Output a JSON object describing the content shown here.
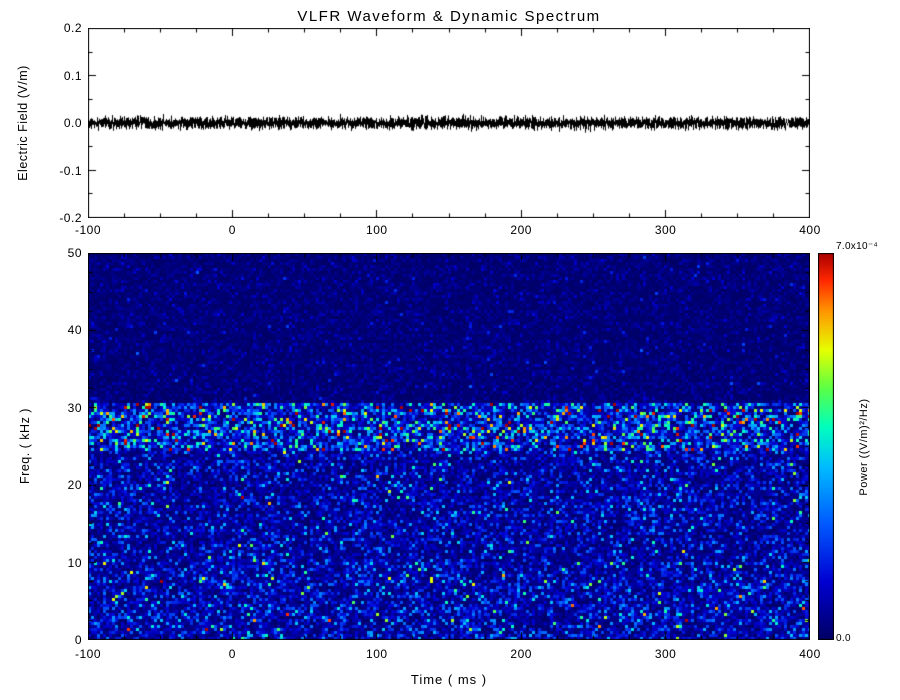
{
  "title": "VLFR Waveform & Dynamic Spectrum",
  "chart_data": [
    {
      "type": "line",
      "panel": "waveform",
      "ylabel": "Electric Field (V/m)",
      "xlim": [
        -100,
        400
      ],
      "ylim": [
        -0.2,
        0.2
      ],
      "xtick_values": [
        -100,
        0,
        100,
        200,
        300,
        400
      ],
      "xtick_labels": [
        "-100",
        "0",
        "100",
        "200",
        "300",
        "400"
      ],
      "ytick_values": [
        0.2,
        0.1,
        0.0,
        -0.1,
        -0.2
      ],
      "ytick_labels": [
        "0.2",
        "0.1",
        "0.0",
        "-0.1",
        "-0.2"
      ],
      "grid": false,
      "series": [
        {
          "name": "electric_field",
          "color": "#000000",
          "description": "zero-mean broadband noise, peak-to-peak about 0.04 V/m, spanning full time range",
          "noise_amplitude_vm": 0.02
        }
      ]
    },
    {
      "type": "heatmap",
      "panel": "dynamic_spectrum",
      "xlabel": "Time ( ms )",
      "ylabel": "Freq. ( kHz )",
      "xlim": [
        -100,
        400
      ],
      "ylim": [
        0,
        50
      ],
      "xtick_values": [
        -100,
        0,
        100,
        200,
        300,
        400
      ],
      "xtick_labels": [
        "-100",
        "0",
        "100",
        "200",
        "300",
        "400"
      ],
      "ytick_values": [
        50,
        40,
        30,
        20,
        10,
        0
      ],
      "ytick_labels": [
        "50",
        "40",
        "30",
        "20",
        "10",
        "0"
      ],
      "background_color": "#000073",
      "bands": [
        {
          "freq_khz": [
            30.5,
            50
          ],
          "mean_intensity": 0.035,
          "description": "quiet dark-blue region above 30 kHz"
        },
        {
          "freq_khz": [
            24.5,
            30.5
          ],
          "mean_intensity": 0.24,
          "description": "enhanced noise band 25-30 kHz with cyan-green speckles"
        },
        {
          "freq_khz": [
            10,
            24.5
          ],
          "mean_intensity": 0.11,
          "description": "broadband blue speckle noise"
        },
        {
          "freq_khz": [
            0,
            10
          ],
          "mean_intensity": 0.13,
          "description": "slightly brighter low-frequency speckle noise"
        }
      ],
      "colorbar": {
        "label": "Power ((V/m)²/Hz)",
        "max_label": "7.0x10⁻⁴",
        "min_label": "0.0",
        "min": 0,
        "max": 0.0007,
        "stops": [
          [
            0,
            [
              0,
              0,
              100
            ]
          ],
          [
            0.15,
            [
              0,
              0,
              210
            ]
          ],
          [
            0.3,
            [
              0,
              90,
              255
            ]
          ],
          [
            0.45,
            [
              0,
              190,
              255
            ]
          ],
          [
            0.55,
            [
              0,
              255,
              190
            ]
          ],
          [
            0.65,
            [
              90,
              255,
              70
            ]
          ],
          [
            0.75,
            [
              230,
              255,
              0
            ]
          ],
          [
            0.85,
            [
              255,
              150,
              0
            ]
          ],
          [
            0.93,
            [
              255,
              40,
              0
            ]
          ],
          [
            1,
            [
              170,
              0,
              0
            ]
          ]
        ]
      }
    }
  ]
}
